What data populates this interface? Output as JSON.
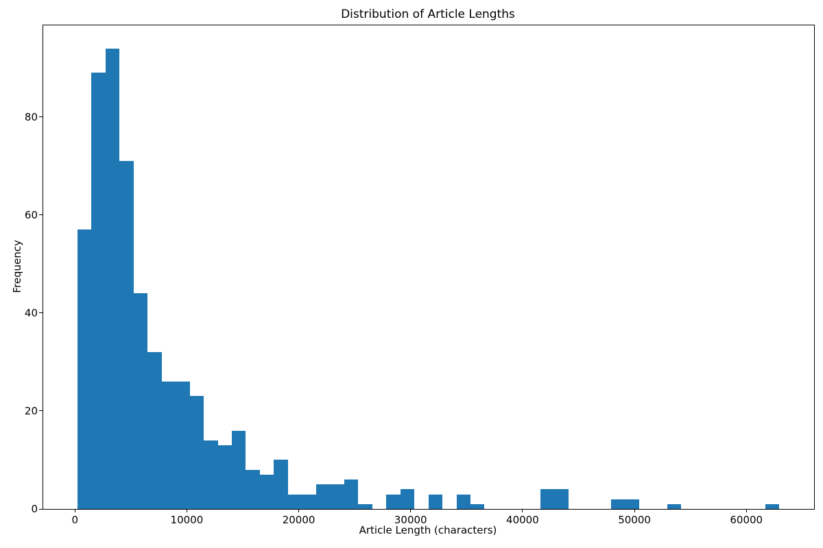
{
  "chart_data": {
    "type": "bar",
    "subtype": "histogram",
    "title": "Distribution of Article Lengths",
    "xlabel": "Article Length (characters)",
    "ylabel": "Frequency",
    "bar_color": "#1f77b4",
    "background_color": "#ffffff",
    "grid": false,
    "legend_position": "none",
    "bin_start": 221,
    "bin_width": 1254.6,
    "counts": [
      57,
      89,
      94,
      71,
      44,
      32,
      26,
      26,
      23,
      14,
      13,
      16,
      8,
      7,
      10,
      3,
      3,
      5,
      5,
      6,
      1,
      0,
      3,
      4,
      0,
      3,
      0,
      3,
      1,
      0,
      0,
      0,
      0,
      4,
      4,
      0,
      0,
      0,
      2,
      2,
      0,
      0,
      1,
      0,
      0,
      0,
      0,
      0,
      0,
      1
    ],
    "xlim": [
      -2833,
      66052
    ],
    "ylim": [
      0,
      98.7
    ],
    "x_ticks": [
      0,
      10000,
      20000,
      30000,
      40000,
      50000,
      60000
    ],
    "y_ticks": [
      0,
      20,
      40,
      60,
      80
    ]
  }
}
